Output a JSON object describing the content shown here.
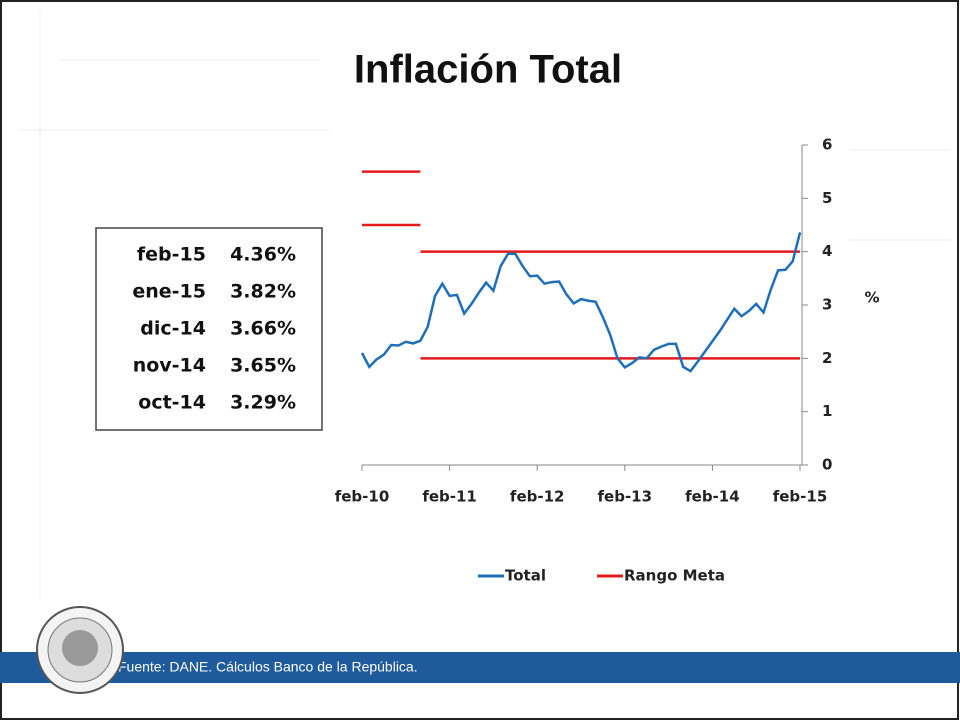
{
  "chart_data": {
    "type": "line",
    "title": "Inflación Total",
    "categories": [
      "feb-10",
      null,
      null,
      null,
      null,
      null,
      null,
      null,
      null,
      null,
      null,
      null,
      "feb-11",
      null,
      null,
      null,
      null,
      null,
      null,
      null,
      null,
      null,
      null,
      null,
      "feb-12",
      null,
      null,
      null,
      null,
      null,
      null,
      null,
      null,
      null,
      null,
      null,
      "feb-13",
      null,
      null,
      null,
      null,
      null,
      null,
      null,
      null,
      null,
      null,
      null,
      "feb-14",
      null,
      null,
      null,
      null,
      null,
      null,
      null,
      null,
      null,
      null,
      null,
      "feb-15"
    ],
    "series": [
      {
        "name": "Total",
        "color": "#1f6fb8",
        "values": [
          2.1,
          1.84,
          1.98,
          2.07,
          2.25,
          2.24,
          2.31,
          2.28,
          2.33,
          2.59,
          3.17,
          3.4,
          3.17,
          3.19,
          2.84,
          3.02,
          3.23,
          3.42,
          3.27,
          3.73,
          3.96,
          3.96,
          3.73,
          3.54,
          3.55,
          3.4,
          3.43,
          3.44,
          3.2,
          3.03,
          3.11,
          3.08,
          3.06,
          2.77,
          2.44,
          2.0,
          1.83,
          1.91,
          2.02,
          2.0,
          2.16,
          2.22,
          2.27,
          2.27,
          1.84,
          1.76,
          1.94,
          2.13,
          2.32,
          2.51,
          2.72,
          2.93,
          2.79,
          2.89,
          3.02,
          2.86,
          3.29,
          3.65,
          3.66,
          3.82,
          4.36
        ]
      }
    ],
    "target": {
      "name": "Rango Meta",
      "color": "#e31b1b",
      "upper": [
        5.5,
        5.5,
        5.5,
        5.5,
        5.5,
        5.5,
        5.5,
        5.5,
        4,
        4,
        4,
        4,
        4,
        4,
        4,
        4,
        4,
        4,
        4,
        4,
        4,
        4,
        4,
        4,
        4,
        4,
        4,
        4,
        4,
        4,
        4,
        4,
        4,
        4,
        4,
        4,
        4,
        4,
        4,
        4,
        4,
        4,
        4,
        4,
        4,
        4,
        4,
        4,
        4,
        4,
        4,
        4,
        4,
        4,
        4,
        4,
        4,
        4,
        4,
        4,
        4
      ],
      "lower": [
        4.5,
        4.5,
        4.5,
        4.5,
        4.5,
        4.5,
        4.5,
        4.5,
        2,
        2,
        2,
        2,
        2,
        2,
        2,
        2,
        2,
        2,
        2,
        2,
        2,
        2,
        2,
        2,
        2,
        2,
        2,
        2,
        2,
        2,
        2,
        2,
        2,
        2,
        2,
        2,
        2,
        2,
        2,
        2,
        2,
        2,
        2,
        2,
        2,
        2,
        2,
        2,
        2,
        2,
        2,
        2,
        2,
        2,
        2,
        2,
        2,
        2,
        2,
        2,
        2
      ]
    },
    "ylim": [
      0,
      6
    ],
    "yticks": [
      0,
      1,
      2,
      3,
      4,
      5,
      6
    ],
    "y_label": "%",
    "table": {
      "rows": [
        [
          "feb-15",
          "4.36%"
        ],
        [
          "ene-15",
          "3.82%"
        ],
        [
          "dic-14",
          "3.66%"
        ],
        [
          "nov-14",
          "3.65%"
        ],
        [
          "oct-14",
          "3.29%"
        ]
      ]
    },
    "footer": "Fuente: DANE. Cálculos Banco de la República."
  }
}
